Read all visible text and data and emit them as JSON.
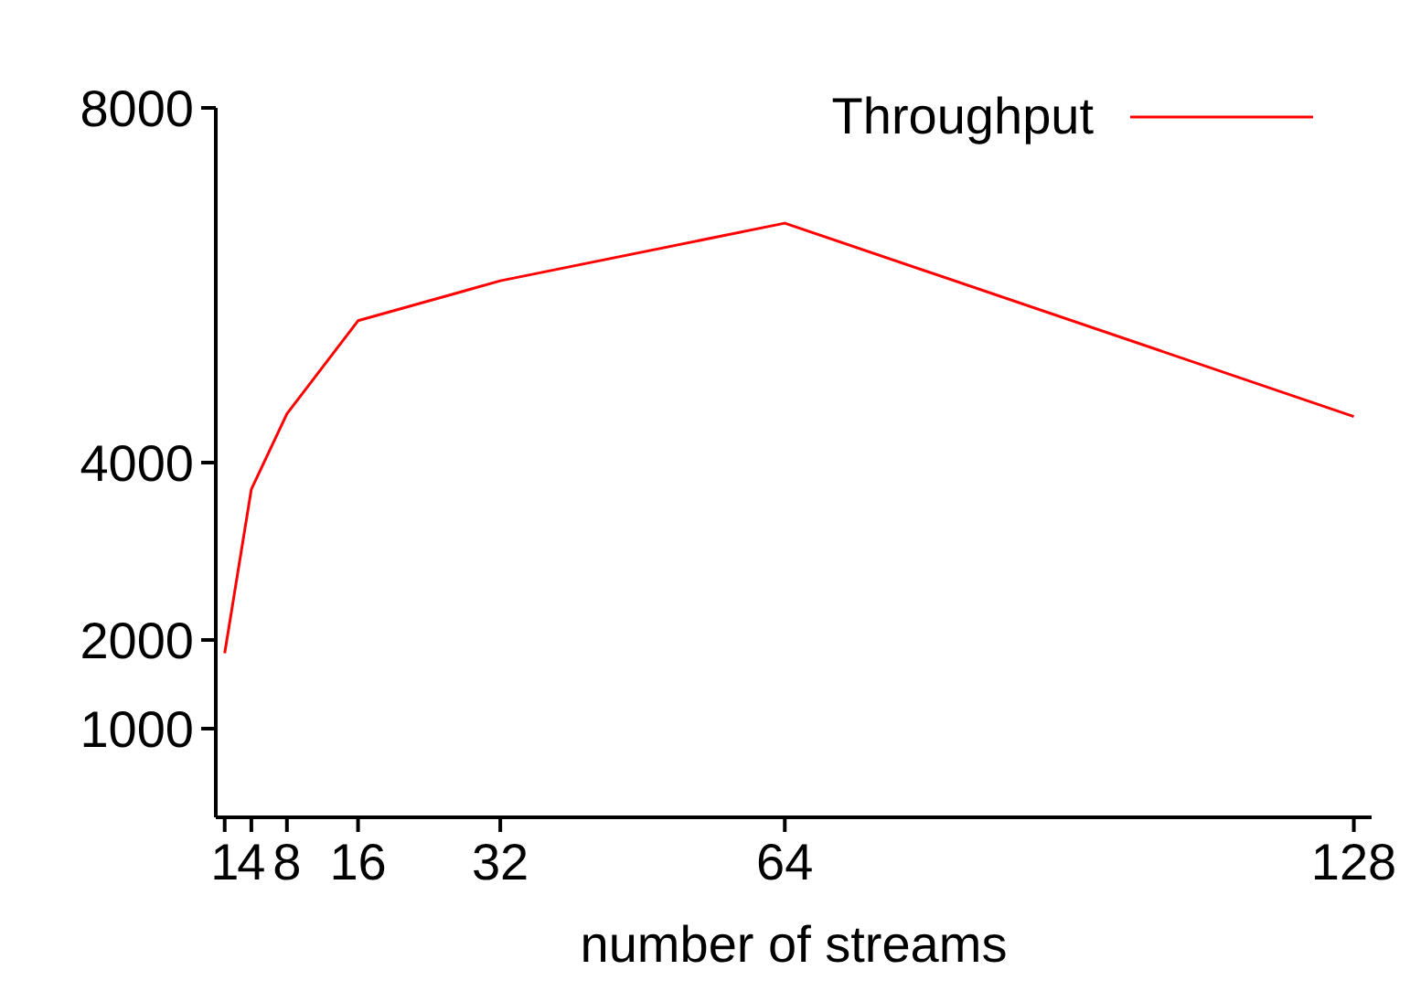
{
  "chart_data": {
    "type": "line",
    "xlabel": "number of streams",
    "x": [
      1,
      4,
      8,
      16,
      32,
      64,
      128
    ],
    "series": [
      {
        "name": "Throughput",
        "color": "#ff0000",
        "values": [
          1850,
          3700,
          4550,
          5600,
          6050,
          6700,
          4520
        ]
      }
    ],
    "xlim": [
      0,
      130
    ],
    "xticks": [
      1,
      4,
      8,
      16,
      32,
      64,
      128
    ],
    "ylim": [
      0,
      8000
    ],
    "yticks": [
      1000,
      2000,
      4000,
      8000
    ],
    "grid": false,
    "legend": "top right",
    "marker": "none",
    "line_style": "solid"
  }
}
